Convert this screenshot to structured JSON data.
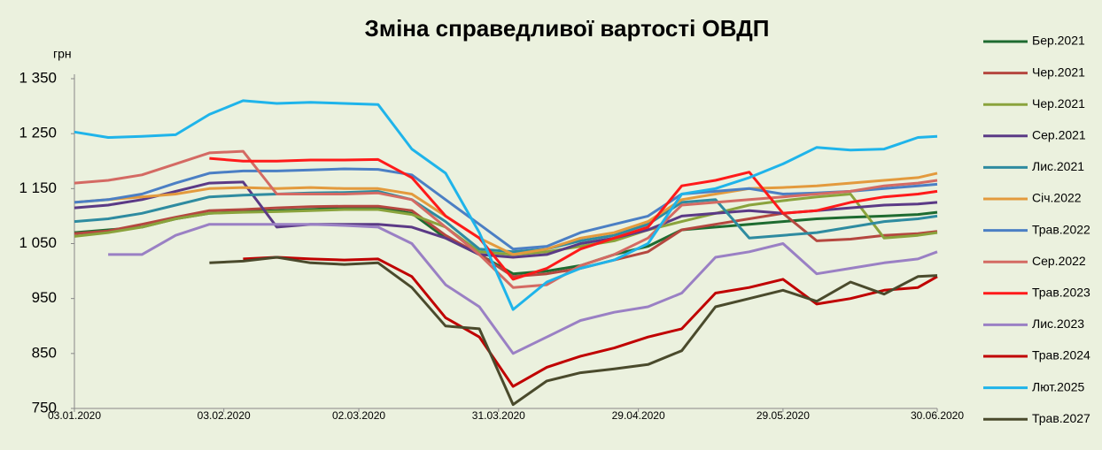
{
  "chart_data": {
    "type": "line",
    "title": "Зміна справедливої вартості ОВДП",
    "y_label": "грн",
    "x": [
      "03.01.2020",
      "10.01.2020",
      "17.01.2020",
      "24.01.2020",
      "31.01.2020",
      "07.02.2020",
      "14.02.2020",
      "21.02.2020",
      "28.02.2020",
      "06.03.2020",
      "13.03.2020",
      "20.03.2020",
      "27.03.2020",
      "03.04.2020",
      "10.04.2020",
      "17.04.2020",
      "24.04.2020",
      "01.05.2020",
      "08.05.2020",
      "15.05.2020",
      "22.05.2020",
      "29.05.2020",
      "05.06.2020",
      "12.06.2020",
      "19.06.2020",
      "26.06.2020",
      "30.06.2020"
    ],
    "xlim": [
      "03.01.2020",
      "30.06.2020"
    ],
    "xticks": [
      "03.01.2020",
      "03.02.2020",
      "02.03.2020",
      "31.03.2020",
      "29.04.2020",
      "29.05.2020",
      "30.06.2020"
    ],
    "ylim": [
      750,
      1350
    ],
    "yticks": [
      750,
      850,
      950,
      {
        "value": 1050,
        "label": "1 050"
      },
      {
        "value": 1150,
        "label": "1 150"
      },
      {
        "value": 1250,
        "label": "1 250"
      },
      {
        "value": 1350,
        "label": "1 350"
      }
    ],
    "grid": false,
    "legend": "right",
    "series": [
      {
        "name": "Бер.2021",
        "color": "#1e6b30",
        "values": [
          1070,
          1075,
          1080,
          1095,
          1105,
          1108,
          1110,
          1112,
          1115,
          1115,
          1105,
          1060,
          1030,
          995,
          1000,
          1010,
          1030,
          1045,
          1075,
          1080,
          1085,
          1090,
          1095,
          1098,
          1100,
          1103,
          1107
        ]
      },
      {
        "name": "Чер.2021",
        "color": "#b5473f",
        "values": [
          1068,
          1073,
          1085,
          1098,
          1110,
          1112,
          1115,
          1117,
          1118,
          1118,
          1110,
          1065,
          1030,
          990,
          995,
          1005,
          1020,
          1035,
          1075,
          1085,
          1095,
          1105,
          1055,
          1058,
          1065,
          1068,
          1072
        ]
      },
      {
        "name": "Чер.2021",
        "color": "#8aa33c",
        "values": [
          1063,
          1070,
          1080,
          1095,
          1105,
          1107,
          1108,
          1110,
          1112,
          1112,
          1103,
          1080,
          1035,
          1030,
          1035,
          1045,
          1055,
          1075,
          1090,
          1105,
          1120,
          1128,
          1135,
          1140,
          1060,
          1065,
          1070
        ]
      },
      {
        "name": "Сер.2021",
        "color": "#5b3a86",
        "values": [
          1115,
          1120,
          1130,
          1145,
          1160,
          1162,
          1080,
          1085,
          1085,
          1085,
          1080,
          1060,
          1030,
          1025,
          1030,
          1050,
          1060,
          1075,
          1100,
          1105,
          1110,
          1105,
          1110,
          1115,
          1120,
          1122,
          1125
        ]
      },
      {
        "name": "Лис.2021",
        "color": "#2e8ba0",
        "values": [
          1090,
          1095,
          1105,
          1120,
          1135,
          1138,
          1140,
          1142,
          1143,
          1145,
          1130,
          1090,
          1040,
          1035,
          1040,
          1055,
          1065,
          1085,
          1125,
          1130,
          1060,
          1065,
          1070,
          1080,
          1090,
          1095,
          1100
        ]
      },
      {
        "name": "Січ.2022",
        "color": "#e39a3d",
        "values": [
          1125,
          1130,
          1135,
          1140,
          1150,
          1152,
          1150,
          1152,
          1150,
          1150,
          1140,
          1100,
          1060,
          1030,
          1040,
          1060,
          1070,
          1090,
          1130,
          1140,
          1150,
          1152,
          1155,
          1160,
          1165,
          1170,
          1178
        ]
      },
      {
        "name": "Трав.2022",
        "color": "#4b7fc4",
        "values": [
          1125,
          1130,
          1140,
          1160,
          1178,
          1182,
          1182,
          1184,
          1186,
          1185,
          1175,
          1130,
          1085,
          1040,
          1045,
          1070,
          1085,
          1100,
          1140,
          1145,
          1150,
          1140,
          1142,
          1145,
          1150,
          1155,
          1158
        ]
      },
      {
        "name": "Сер.2022",
        "color": "#d46a63",
        "values": [
          1160,
          1165,
          1175,
          1195,
          1215,
          1218,
          1140,
          1140,
          1140,
          1142,
          1130,
          1080,
          1030,
          970,
          975,
          1010,
          1030,
          1060,
          1120,
          1125,
          1130,
          1135,
          1140,
          1145,
          1155,
          1160,
          1165
        ]
      },
      {
        "name": "Трав.2023",
        "color": "#ff1a1a",
        "values": [
          null,
          null,
          null,
          null,
          1205,
          1200,
          1200,
          1202,
          1202,
          1203,
          1170,
          1100,
          1060,
          985,
          1005,
          1040,
          1060,
          1080,
          1155,
          1165,
          1180,
          1105,
          1110,
          1125,
          1135,
          1140,
          1145
        ]
      },
      {
        "name": "Лис.2023",
        "color": "#9a80c4",
        "values": [
          null,
          1030,
          1030,
          1065,
          1085,
          1085,
          1085,
          1085,
          1083,
          1080,
          1050,
          975,
          935,
          850,
          880,
          910,
          925,
          935,
          960,
          1025,
          1035,
          1050,
          995,
          1005,
          1015,
          1022,
          1035
        ]
      },
      {
        "name": "Трав.2024",
        "color": "#c00000",
        "values": [
          null,
          null,
          null,
          null,
          null,
          1022,
          1025,
          1022,
          1020,
          1022,
          990,
          915,
          880,
          790,
          825,
          845,
          860,
          880,
          895,
          960,
          970,
          985,
          940,
          950,
          965,
          970,
          990
        ]
      },
      {
        "name": "Лют.2025",
        "color": "#1fb4ea",
        "values": [
          1253,
          1243,
          1245,
          1248,
          1285,
          1310,
          1305,
          1307,
          1305,
          1303,
          1222,
          1178,
          1070,
          930,
          980,
          1005,
          1020,
          1050,
          1140,
          1150,
          1170,
          1195,
          1225,
          1220,
          1222,
          1243,
          1245
        ]
      },
      {
        "name": "Трав.2027",
        "color": "#4a4a2c",
        "values": [
          null,
          null,
          null,
          null,
          1015,
          1018,
          1025,
          1015,
          1012,
          1015,
          970,
          900,
          895,
          757,
          800,
          815,
          822,
          830,
          855,
          935,
          950,
          965,
          945,
          980,
          958,
          990,
          992
        ]
      }
    ]
  }
}
